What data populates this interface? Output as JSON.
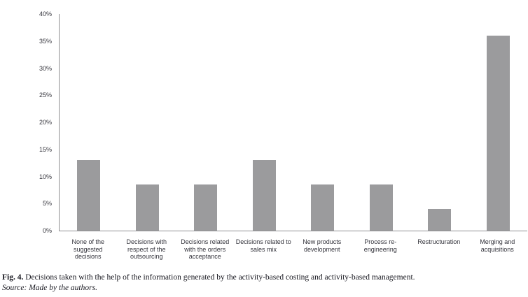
{
  "figure": {
    "caption_label": "Fig. 4.",
    "caption_text": "Decisions taken with the help of the information generated by the activity-based costing and activity-based management.",
    "source": "Source: Made by the authors."
  },
  "chart_data": {
    "type": "bar",
    "title": "",
    "xlabel": "",
    "ylabel": "",
    "categories": [
      "None of the suggested decisions",
      "Decisions with respect of the outsourcing",
      "Decisions related with the orders acceptance",
      "Decisions related to sales mix",
      "New products development",
      "Process re-engineering",
      "Restructuration",
      "Merging and acquisitions"
    ],
    "values": [
      13,
      8.5,
      8.5,
      13,
      8.5,
      8.5,
      4,
      36
    ],
    "unit": "%",
    "ylim": [
      0,
      40
    ],
    "ytick_step": 5,
    "ytick_labels": [
      "0%",
      "5%",
      "10%",
      "15%",
      "20%",
      "25%",
      "30%",
      "35%",
      "40%"
    ],
    "grid": false,
    "legend_position": "none",
    "bar_color": "#9b9b9d",
    "axis_color": "#8f8f91",
    "tick_label_color": "#33333b"
  }
}
